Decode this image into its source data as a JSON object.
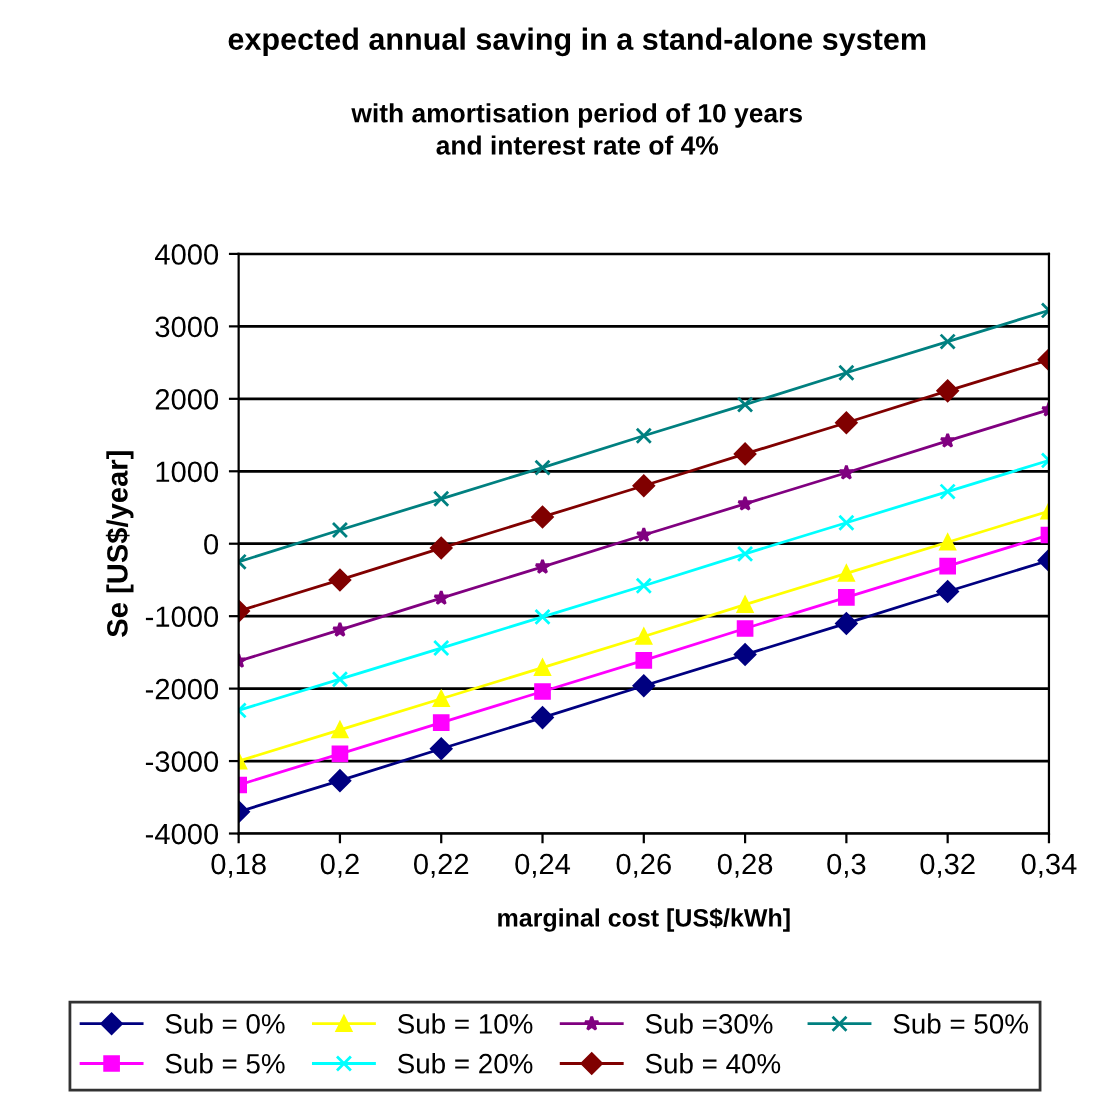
{
  "chart_data": {
    "type": "line",
    "title": "expected annual saving in a stand-alone system",
    "subtitle": "with amortisation period of 10 years\nand interest rate of 4%",
    "xlabel": "marginal cost [US$/kWh]",
    "ylabel": "Se [US$/year]",
    "x": [
      0.18,
      0.2,
      0.22,
      0.24,
      0.26,
      0.28,
      0.3,
      0.32,
      0.34
    ],
    "xlim": [
      0.18,
      0.34
    ],
    "xticks": [
      {
        "value": 0.18,
        "label": "0,18"
      },
      {
        "value": 0.2,
        "label": "0,2"
      },
      {
        "value": 0.22,
        "label": "0,22"
      },
      {
        "value": 0.24,
        "label": "0,24"
      },
      {
        "value": 0.26,
        "label": "0,26"
      },
      {
        "value": 0.28,
        "label": "0,28"
      },
      {
        "value": 0.3,
        "label": "0,3"
      },
      {
        "value": 0.32,
        "label": "0,32"
      },
      {
        "value": 0.34,
        "label": "0,34"
      }
    ],
    "ylim": [
      -4000,
      4000
    ],
    "yticks": [
      -4000,
      -3000,
      -2000,
      -1000,
      0,
      1000,
      2000,
      3000,
      4000
    ],
    "grid": "y",
    "legend": "bottom",
    "line_style": "solid",
    "series": [
      {
        "name": "Sub = 0%",
        "color": "#000080",
        "marker": "diamond",
        "values": [
          -3700,
          -3270,
          -2830,
          -2400,
          -1960,
          -1530,
          -1100,
          -660,
          -230
        ]
      },
      {
        "name": "Sub = 5%",
        "color": "#ff00ff",
        "marker": "square",
        "values": [
          -3330,
          -2900,
          -2470,
          -2040,
          -1610,
          -1170,
          -740,
          -310,
          120
        ]
      },
      {
        "name": "Sub = 10%",
        "color": "#ffff00",
        "marker": "triangle",
        "values": [
          -3000,
          -2570,
          -2140,
          -1710,
          -1280,
          -840,
          -410,
          20,
          450
        ]
      },
      {
        "name": "Sub = 20%",
        "color": "#00ffff",
        "marker": "cross",
        "values": [
          -2300,
          -1870,
          -1440,
          -1010,
          -580,
          -140,
          290,
          720,
          1150
        ]
      },
      {
        "name": "Sub =30%",
        "color": "#800080",
        "marker": "star",
        "values": [
          -1620,
          -1190,
          -750,
          -320,
          120,
          550,
          980,
          1420,
          1850
        ]
      },
      {
        "name": "Sub = 40%",
        "color": "#800000",
        "marker": "diamond",
        "values": [
          -930,
          -500,
          -60,
          370,
          800,
          1240,
          1670,
          2110,
          2540
        ]
      },
      {
        "name": "Sub = 50%",
        "color": "#008080",
        "marker": "cross",
        "values": [
          -250,
          190,
          620,
          1050,
          1490,
          1920,
          2360,
          2790,
          3220
        ]
      }
    ]
  }
}
